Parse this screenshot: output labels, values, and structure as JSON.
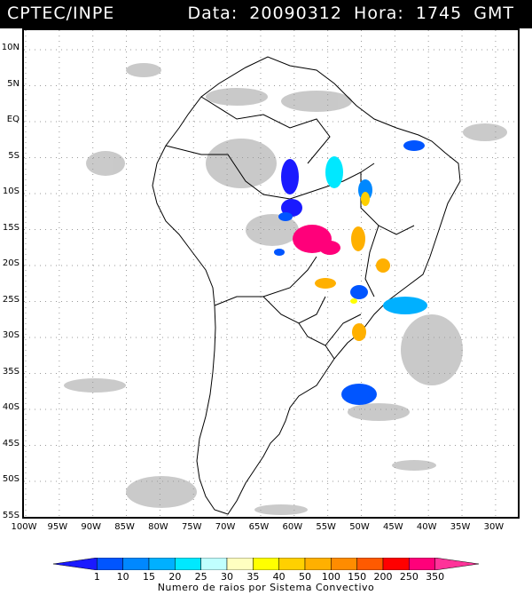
{
  "header": {
    "source": "CPTEC/INPE",
    "date_label": "Data:",
    "date": "20090312",
    "hour_label": "Hora:",
    "hour": "1745 GMT"
  },
  "map": {
    "lat_labels": [
      "10N",
      "5N",
      "EQ",
      "5S",
      "10S",
      "15S",
      "20S",
      "25S",
      "30S",
      "35S",
      "40S",
      "45S",
      "50S",
      "55S"
    ],
    "lat_values": [
      10,
      5,
      0,
      -5,
      -10,
      -15,
      -20,
      -25,
      -30,
      -35,
      -40,
      -45,
      -50,
      -55
    ],
    "lon_labels": [
      "100W",
      "95W",
      "90W",
      "85W",
      "80W",
      "75W",
      "70W",
      "65W",
      "60W",
      "55W",
      "50W",
      "45W",
      "40W",
      "35W",
      "30W"
    ],
    "lon_values": [
      -100,
      -95,
      -90,
      -85,
      -80,
      -75,
      -70,
      -65,
      -60,
      -55,
      -50,
      -45,
      -40,
      -35,
      -30
    ],
    "grid": "dotted"
  },
  "colorbar": {
    "title": "Numero de raios por Sistema Convectivo",
    "labels": [
      "1",
      "10",
      "15",
      "20",
      "25",
      "30",
      "35",
      "40",
      "50",
      "100",
      "150",
      "200",
      "250",
      "350"
    ],
    "colors": [
      "#1a1aff",
      "#0055ff",
      "#0088ff",
      "#00b0ff",
      "#00e8ff",
      "#c0ffff",
      "#ffffc0",
      "#ffff00",
      "#ffd000",
      "#ffb000",
      "#ff8c00",
      "#ff5a00",
      "#ff0000",
      "#ff007a",
      "#ff3399"
    ]
  }
}
